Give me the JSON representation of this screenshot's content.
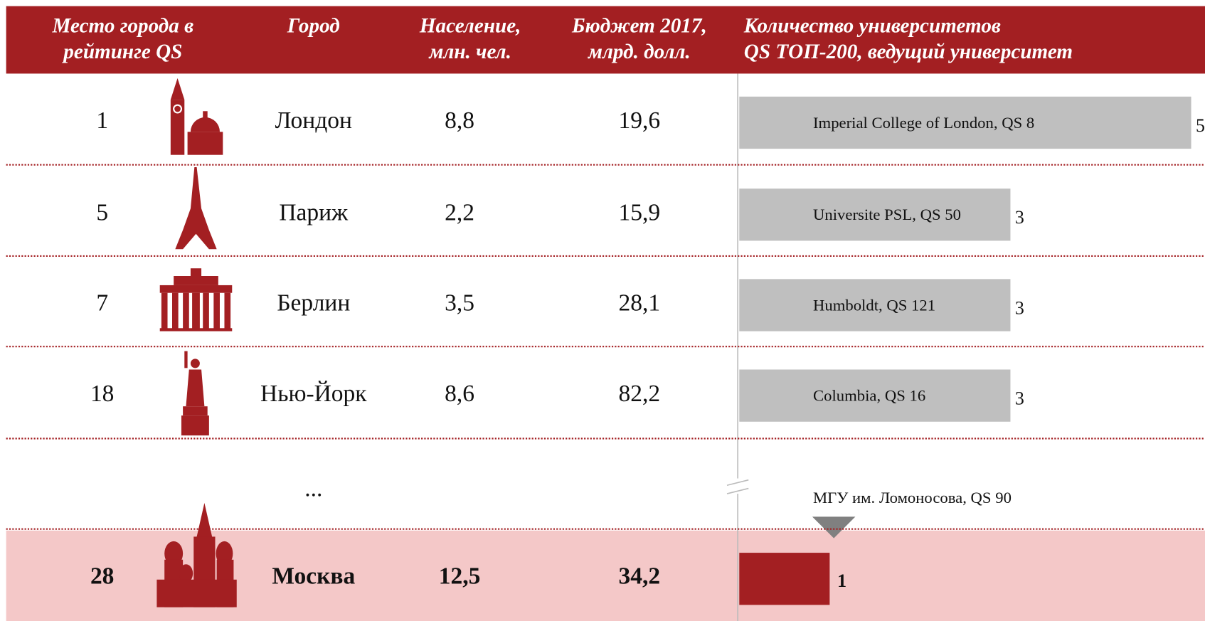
{
  "table": {
    "headers": [
      [
        "Место города в",
        "рейтинге QS"
      ],
      [
        "Город"
      ],
      [
        "Население,",
        "млн. чел."
      ],
      [
        "Бюджет 2017,",
        "млрд. долл."
      ],
      [
        "Количество университетов",
        "QS ТОП-200, ведущий университет"
      ]
    ],
    "rows": [
      {
        "rank": 1,
        "city": "Лондон",
        "population": "8,8",
        "budget": "19,6",
        "university": "Imperial College of London, QS 8",
        "count": 5
      },
      {
        "rank": 5,
        "city": "Париж",
        "population": "2,2",
        "budget": "15,9",
        "university": "Universite PSL, QS 50",
        "count": 3
      },
      {
        "rank": 7,
        "city": "Берлин",
        "population": "3,5",
        "budget": "28,1",
        "university": "Humboldt, QS 121",
        "count": 3
      },
      {
        "rank": 18,
        "city": "Нью-Йорк",
        "population": "8,6",
        "budget": "82,2",
        "university": "Columbia, QS 16",
        "count": 3
      },
      {
        "rank": 28,
        "city": "Москва",
        "population": "12,5",
        "budget": "34,2",
        "university": "МГУ им. Ломоносова, QS 90",
        "count": 1
      }
    ],
    "ellipsis": "..."
  }
}
